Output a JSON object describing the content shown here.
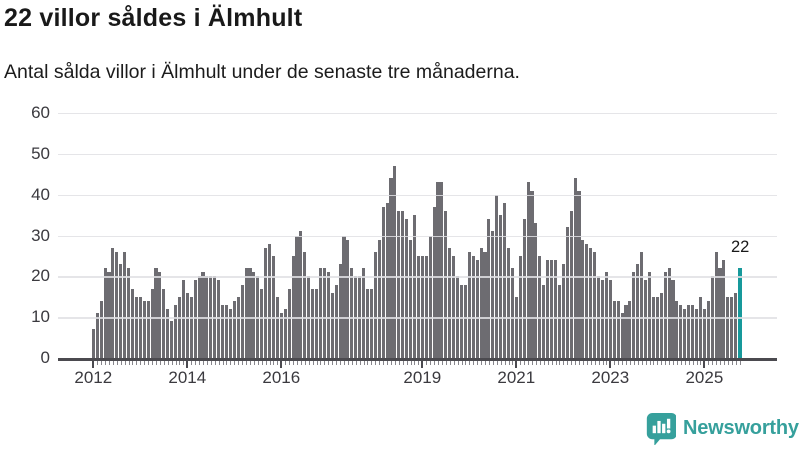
{
  "header": {
    "title": "22 villor såldes i Älmhult",
    "subtitle": "Antal sålda villor i Älmhult under de senaste tre månaderna."
  },
  "chart_data": {
    "type": "bar",
    "title": "22 villor såldes i Älmhult",
    "subtitle": "Antal sålda villor i Älmhult under de senaste tre månaderna.",
    "unit": "sålda villor (rullande tre månader)",
    "x_start": "2012-01",
    "frequency": "monthly",
    "ylim": [
      0,
      60
    ],
    "yticks": [
      0,
      10,
      20,
      30,
      40,
      50,
      60
    ],
    "grid": true,
    "bar_color": "#6d6c71",
    "highlight_color": "#17999b",
    "axis_color": "#4b4a4f",
    "values": [
      7,
      11,
      14,
      22,
      21,
      27,
      26,
      23,
      26,
      22,
      17,
      15,
      15,
      14,
      14,
      17,
      22,
      21,
      17,
      12,
      9,
      13,
      15,
      19,
      16,
      15,
      19,
      20,
      21,
      20,
      20,
      20,
      19,
      13,
      13,
      12,
      14,
      15,
      18,
      22,
      22,
      21,
      20,
      17,
      27,
      28,
      25,
      15,
      11,
      12,
      17,
      25,
      30,
      31,
      26,
      20,
      17,
      17,
      22,
      22,
      21,
      16,
      18,
      23,
      30,
      29,
      22,
      20,
      20,
      22,
      17,
      17,
      26,
      29,
      37,
      38,
      44,
      47,
      36,
      36,
      34,
      29,
      35,
      25,
      25,
      25,
      30,
      37,
      43,
      43,
      36,
      27,
      25,
      20,
      18,
      18,
      26,
      25,
      24,
      27,
      26,
      34,
      31,
      40,
      35,
      38,
      27,
      22,
      15,
      25,
      34,
      43,
      41,
      33,
      25,
      18,
      24,
      24,
      24,
      18,
      23,
      32,
      36,
      44,
      41,
      29,
      28,
      27,
      26,
      20,
      19,
      21,
      19,
      14,
      14,
      11,
      13,
      14,
      21,
      23,
      26,
      19,
      21,
      15,
      15,
      16,
      21,
      22,
      19,
      14,
      13,
      12,
      13,
      13,
      12,
      15,
      12,
      14,
      20,
      26,
      22,
      24,
      15,
      15,
      16,
      22
    ],
    "highlight": {
      "index": 165,
      "value": 22,
      "label": "22"
    },
    "xticks": [
      {
        "label": "2012",
        "month_index": 0
      },
      {
        "label": "2014",
        "month_index": 24
      },
      {
        "label": "2016",
        "month_index": 48
      },
      {
        "label": "2019",
        "month_index": 84
      },
      {
        "label": "2021",
        "month_index": 108
      },
      {
        "label": "2023",
        "month_index": 132
      },
      {
        "label": "2025",
        "month_index": 156
      }
    ],
    "legend": false
  },
  "footer": {
    "brand": "Newsworthy",
    "brand_color": "#36a09c",
    "logo_icon": "newsworthy-bar-chart-bubble-icon"
  }
}
